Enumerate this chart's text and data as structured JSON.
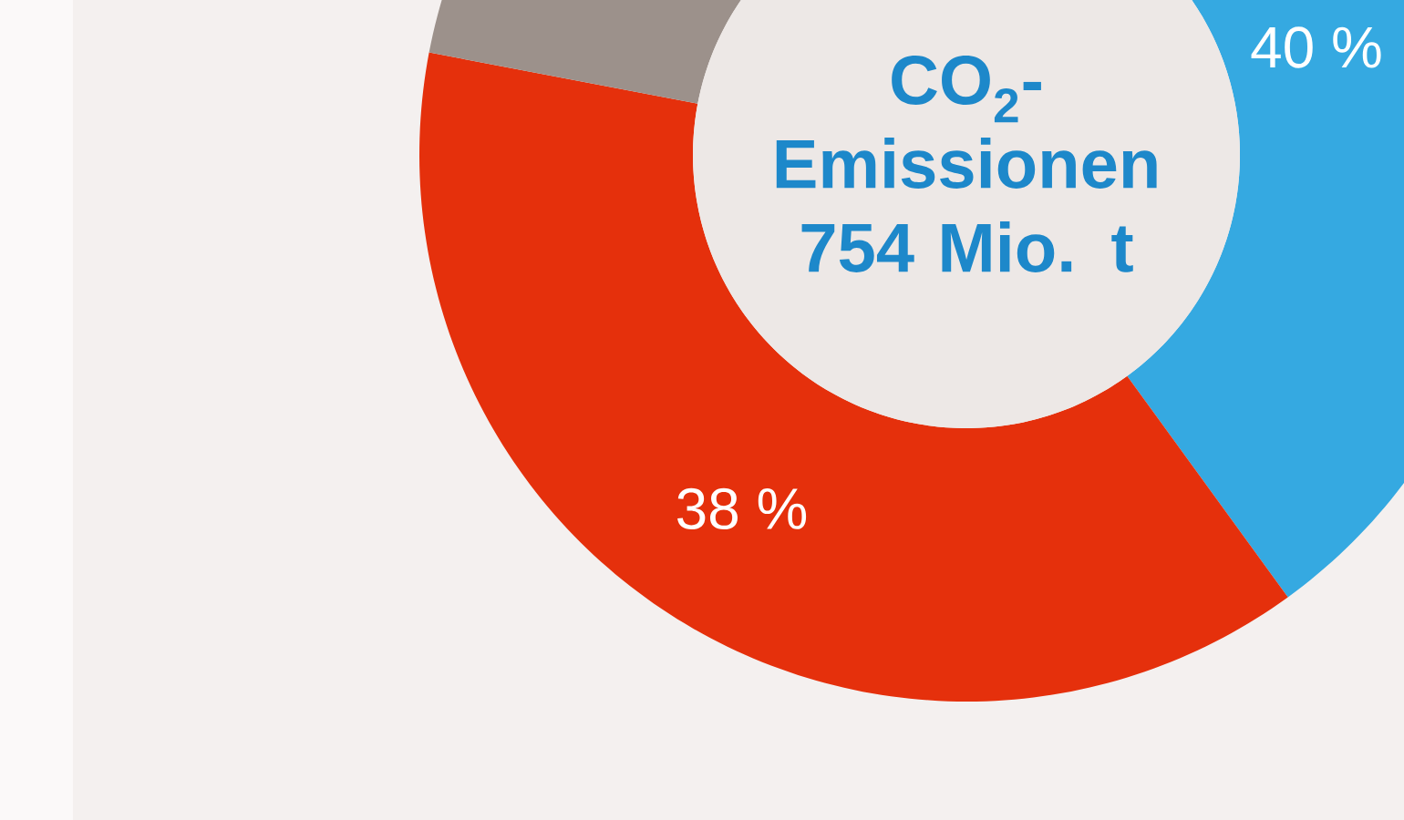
{
  "chart_data": {
    "type": "donut",
    "title": "CO$_{2}$-Emissionen 754 Mio. t",
    "categories": [
      null,
      null,
      null
    ],
    "values": [
      40,
      38,
      22
    ],
    "colors": [
      "#35a9e1",
      "#e5300c",
      "#9c918b"
    ],
    "value_labels": [
      "40 %",
      "38 %",
      null
    ]
  }
}
